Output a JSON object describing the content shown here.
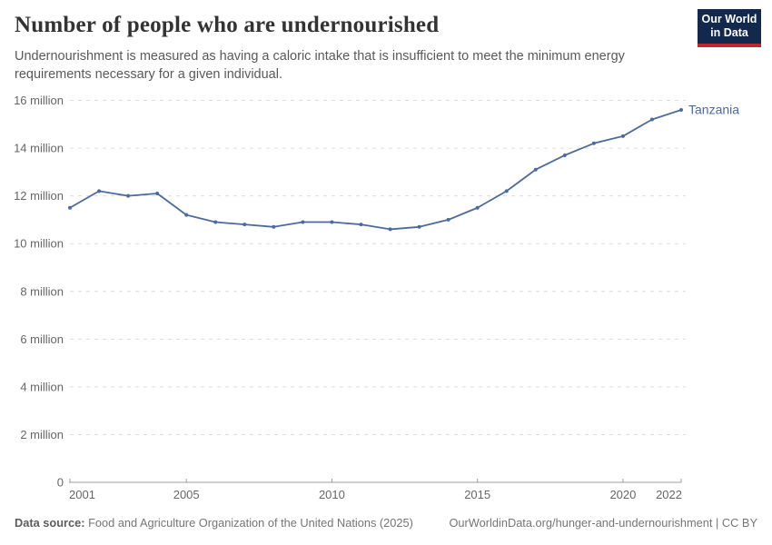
{
  "header": {
    "title": "Number of people who are undernourished",
    "subtitle": "Undernourishment is measured as having a caloric intake that is insufficient to meet the minimum energy requirements necessary for a given individual.",
    "logo": {
      "line1": "Our World",
      "line2": "in Data",
      "bg_color": "#12294d",
      "accent_color": "#c0282d"
    }
  },
  "chart_data": {
    "type": "line",
    "title": "Number of people who are undernourished",
    "x": [
      2001,
      2002,
      2003,
      2004,
      2005,
      2006,
      2007,
      2008,
      2009,
      2010,
      2011,
      2012,
      2013,
      2014,
      2015,
      2016,
      2017,
      2018,
      2019,
      2020,
      2021,
      2022
    ],
    "series": [
      {
        "name": "Tanzania",
        "values": [
          11.5,
          12.2,
          12.0,
          12.1,
          11.2,
          10.9,
          10.8,
          10.7,
          10.9,
          10.9,
          10.8,
          10.6,
          10.7,
          11.0,
          11.5,
          12.2,
          13.1,
          13.7,
          14.2,
          14.5,
          15.2,
          15.6
        ]
      }
    ],
    "unit": "million people",
    "xlabel": "",
    "ylabel": "",
    "ylim": [
      0,
      16
    ],
    "xlim": [
      2001,
      2022
    ],
    "yticks": [
      {
        "v": 0,
        "label": "0"
      },
      {
        "v": 2,
        "label": "2 million"
      },
      {
        "v": 4,
        "label": "4 million"
      },
      {
        "v": 6,
        "label": "6 million"
      },
      {
        "v": 8,
        "label": "8 million"
      },
      {
        "v": 10,
        "label": "10 million"
      },
      {
        "v": 12,
        "label": "12 million"
      },
      {
        "v": 14,
        "label": "14 million"
      },
      {
        "v": 16,
        "label": "16 million"
      }
    ],
    "xticks": [
      "2001",
      "2005",
      "2010",
      "2015",
      "2020",
      "2022"
    ],
    "grid": "horizontal-dashed",
    "legend_position": "end-of-line-label",
    "entity_label": "Tanzania",
    "colors": {
      "line": "#4C6A9C",
      "entity_label": "#4C6A9C",
      "grid": "#dcdcdc",
      "axis": "#9e9e9e",
      "tick_text": "#666666"
    }
  },
  "footer": {
    "datasource_label": "Data source:",
    "datasource": "Food and Agriculture Organization of the United Nations (2025)",
    "link": "OurWorldinData.org/hunger-and-undernourishment | CC BY"
  }
}
